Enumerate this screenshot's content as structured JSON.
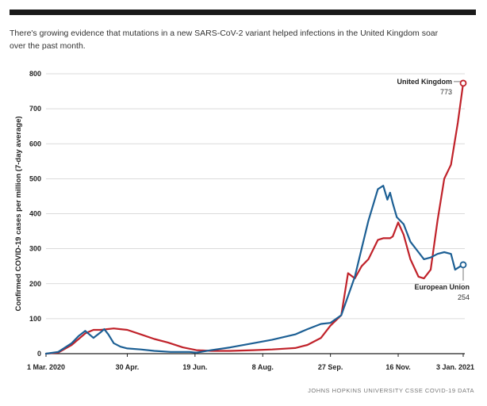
{
  "subtitle": "There's growing evidence that mutations in a new SARS-CoV-2 variant helped infections in the United Kingdom soar over the past month.",
  "source": "JOHNS HOPKINS UNIVERSITY CSSE COVID-19 DATA",
  "colors": {
    "uk": "#c0222a",
    "eu": "#1c5f94",
    "grid": "#cfcfcf",
    "axis": "#222222"
  },
  "chart_data": {
    "type": "line",
    "ylabel": "Confirmed COVID-19 cases per million (7-day average)",
    "ylim": [
      0,
      800
    ],
    "yticks": [
      0,
      100,
      200,
      300,
      400,
      500,
      600,
      700,
      800
    ],
    "xlim": [
      "2020-03-01",
      "2021-01-03"
    ],
    "xticks": [
      {
        "date": "2020-03-01",
        "label": "1 Mar. 2020"
      },
      {
        "date": "2020-04-30",
        "label": "30 Apr."
      },
      {
        "date": "2020-06-19",
        "label": "19 Jun."
      },
      {
        "date": "2020-08-08",
        "label": "8 Aug."
      },
      {
        "date": "2020-09-27",
        "label": "27 Sep."
      },
      {
        "date": "2020-11-16",
        "label": "16 Nov."
      },
      {
        "date": "2021-01-03",
        "label": "3 Jan. 2021"
      }
    ],
    "grid": "horizontal",
    "series": [
      {
        "name": "United Kingdom",
        "end_label": "773",
        "x": [
          "2020-03-01",
          "2020-03-10",
          "2020-03-20",
          "2020-03-30",
          "2020-04-05",
          "2020-04-10",
          "2020-04-15",
          "2020-04-20",
          "2020-04-25",
          "2020-04-30",
          "2020-05-10",
          "2020-05-20",
          "2020-05-30",
          "2020-06-10",
          "2020-06-20",
          "2020-07-01",
          "2020-07-15",
          "2020-08-01",
          "2020-08-15",
          "2020-09-01",
          "2020-09-10",
          "2020-09-20",
          "2020-09-27",
          "2020-10-05",
          "2020-10-10",
          "2020-10-15",
          "2020-10-20",
          "2020-10-25",
          "2020-11-01",
          "2020-11-05",
          "2020-11-10",
          "2020-11-12",
          "2020-11-16",
          "2020-11-20",
          "2020-11-25",
          "2020-12-01",
          "2020-12-05",
          "2020-12-10",
          "2020-12-15",
          "2020-12-20",
          "2020-12-25",
          "2020-12-30",
          "2021-01-03"
        ],
        "y": [
          0,
          3,
          25,
          58,
          68,
          68,
          70,
          72,
          70,
          68,
          55,
          42,
          32,
          18,
          10,
          8,
          8,
          10,
          12,
          16,
          25,
          45,
          80,
          110,
          230,
          215,
          250,
          270,
          325,
          330,
          330,
          335,
          375,
          340,
          270,
          220,
          215,
          240,
          380,
          500,
          540,
          660,
          773
        ]
      },
      {
        "name": "European Union",
        "end_label": "254",
        "x": [
          "2020-03-01",
          "2020-03-10",
          "2020-03-20",
          "2020-03-25",
          "2020-03-30",
          "2020-04-05",
          "2020-04-10",
          "2020-04-13",
          "2020-04-16",
          "2020-04-20",
          "2020-04-25",
          "2020-04-30",
          "2020-05-10",
          "2020-05-20",
          "2020-06-01",
          "2020-06-15",
          "2020-06-20",
          "2020-07-01",
          "2020-07-15",
          "2020-08-01",
          "2020-08-15",
          "2020-09-01",
          "2020-09-10",
          "2020-09-20",
          "2020-09-27",
          "2020-10-05",
          "2020-10-15",
          "2020-10-20",
          "2020-10-25",
          "2020-11-01",
          "2020-11-05",
          "2020-11-08",
          "2020-11-10",
          "2020-11-12",
          "2020-11-15",
          "2020-11-20",
          "2020-11-25",
          "2020-12-01",
          "2020-12-05",
          "2020-12-10",
          "2020-12-15",
          "2020-12-20",
          "2020-12-25",
          "2020-12-28",
          "2021-01-01",
          "2021-01-03"
        ],
        "y": [
          0,
          5,
          30,
          50,
          65,
          45,
          60,
          70,
          55,
          30,
          20,
          15,
          12,
          8,
          5,
          5,
          3,
          10,
          18,
          30,
          40,
          55,
          70,
          85,
          88,
          110,
          220,
          300,
          380,
          470,
          480,
          440,
          460,
          430,
          390,
          370,
          320,
          290,
          270,
          275,
          285,
          290,
          285,
          240,
          250,
          254
        ]
      }
    ],
    "annotations": [
      {
        "series": "United Kingdom",
        "text": "United Kingdom",
        "value": "773"
      },
      {
        "series": "European Union",
        "text": "European Union",
        "value": "254"
      }
    ]
  }
}
